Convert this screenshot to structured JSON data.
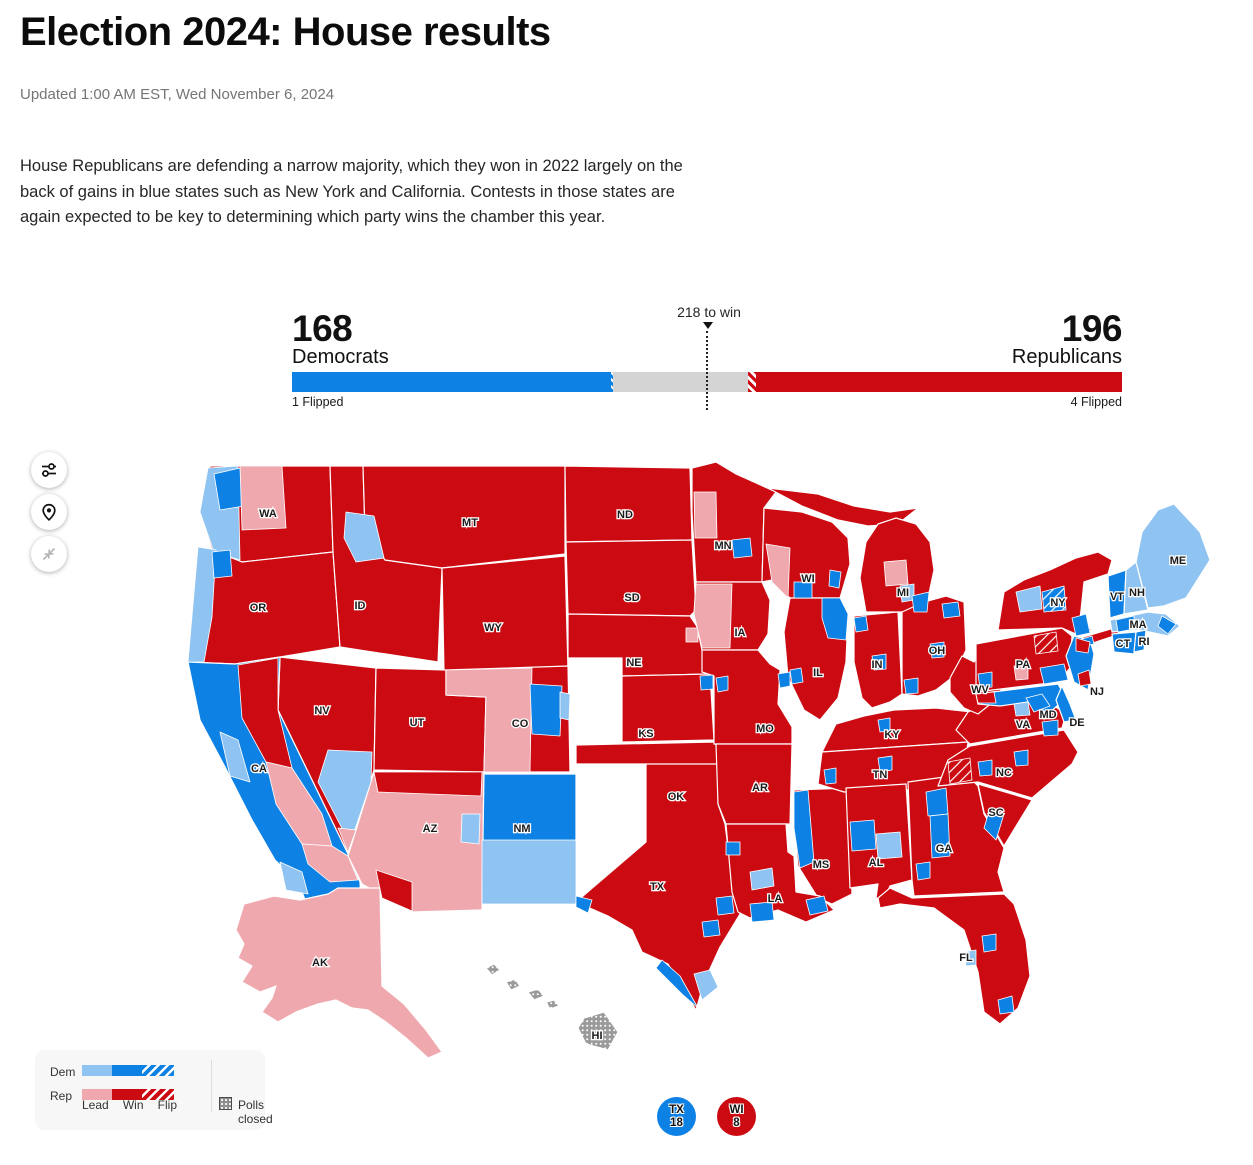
{
  "page": {
    "title": "Election 2024: House results",
    "updated": "Updated 1:00 AM EST, Wed November 6, 2024",
    "paragraph": "House Republicans are defending a narrow majority, which they won in 2022 largely on the back of gains in blue states such as New York and California. Contests in those states are again expected to be key to determining which party wins the chamber this year."
  },
  "balance": {
    "dem_count": "168",
    "dem_label": "Democrats",
    "rep_count": "196",
    "rep_label": "Republicans",
    "marker_label": "218 to win",
    "dem_flipped": "1 Flipped",
    "rep_flipped": "4 Flipped",
    "dem_seats": 168,
    "rep_seats": 196,
    "total_seats": 435,
    "dem_flips": 1,
    "rep_flips": 4,
    "win_threshold": 218
  },
  "palette": {
    "dem_win": "#0e81e4",
    "dem_lead": "#8fc3f2",
    "rep_win": "#cc0a11",
    "rep_lead": "#efa9ae",
    "undecided": "#d4d4d4",
    "polls_closed": "#9a9a9a",
    "text": "#0c0c0c",
    "muted": "#757575"
  },
  "legend": {
    "dem_label": "Dem",
    "rep_label": "Rep",
    "lead_label": "Lead",
    "win_label": "Win",
    "flip_label": "Flip",
    "polls_closed_label": "Polls closed"
  },
  "badges": [
    {
      "state": "TX",
      "district": "18",
      "party": "dem"
    },
    {
      "state": "WI",
      "district": "8",
      "party": "rep"
    }
  ],
  "map": {
    "labels": {
      "WA": "WA",
      "OR": "OR",
      "CA": "CA",
      "NV": "NV",
      "ID": "ID",
      "MT": "MT",
      "WY": "WY",
      "UT": "UT",
      "CO": "CO",
      "AZ": "AZ",
      "NM": "NM",
      "ND": "ND",
      "SD": "SD",
      "NE": "NE",
      "KS": "KS",
      "OK": "OK",
      "TX": "TX",
      "MN": "MN",
      "IA": "IA",
      "MO": "MO",
      "AR": "AR",
      "LA": "LA",
      "WI": "WI",
      "IL": "IL",
      "MI": "MI",
      "IN": "IN",
      "OH": "OH",
      "KY": "KY",
      "TN": "TN",
      "MS": "MS",
      "AL": "AL",
      "GA": "GA",
      "FL": "FL",
      "SC": "SC",
      "NC": "NC",
      "VA": "VA",
      "WV": "WV",
      "PA": "PA",
      "NY": "NY",
      "NJ": "NJ",
      "MD": "MD",
      "DE": "DE",
      "VT": "VT",
      "NH": "NH",
      "ME": "ME",
      "MA": "MA",
      "CT": "CT",
      "RI": "RI",
      "AK": "AK",
      "HI": "HI"
    },
    "fills": {
      "WA": "rep_win",
      "OR": "rep_win",
      "CA": "dem_win",
      "NV": "rep_win",
      "ID": "rep_win",
      "MT": "rep_win",
      "WY": "rep_win",
      "UT": "rep_win",
      "CO": "rep_win",
      "AZ": "rep_lead",
      "NM": "dem_win",
      "ND": "rep_win",
      "SD": "rep_win",
      "NE": "rep_win",
      "KS": "rep_win",
      "OK": "rep_win",
      "TX": "rep_win",
      "MN": "rep_win",
      "IA": "rep_win",
      "MO": "rep_win",
      "AR": "rep_win",
      "LA": "rep_win",
      "WI": "rep_win",
      "IL": "rep_win",
      "MIU": "rep_win",
      "MI": "rep_win",
      "IN": "rep_win",
      "OH": "rep_win",
      "KY": "rep_win",
      "TN": "rep_win",
      "MS": "rep_win",
      "AL": "rep_win",
      "GA": "rep_win",
      "FL": "rep_win",
      "SC": "rep_win",
      "NC": "rep_win",
      "VA": "rep_win",
      "WV": "rep_win",
      "PA": "rep_win",
      "NY": "rep_win",
      "NYLI": "rep_win",
      "NJ": "dem_win",
      "MD": "dem_win",
      "DE": "dem_win",
      "VT": "dem_win",
      "NH": "dem_lead",
      "ME": "dem_lead",
      "MA": "dem_lead",
      "CT": "dem_win",
      "RI": "dem_win",
      "AK": "rep_lead",
      "HI1": "polls_closed",
      "HI2": "polls_closed",
      "HI3": "polls_closed",
      "HI4": "polls_closed",
      "HI5": "polls_closed",
      "wa1": "dem_lead",
      "wa2": "dem_win",
      "wa3": "rep_lead",
      "or1": "dem_lead",
      "or2": "dem_win",
      "ca1": "rep_win",
      "ca2": "rep_lead",
      "ca3": "rep_lead",
      "ca4": "dem_lead",
      "ca5": "dem_lead",
      "nv1": "dem_lead",
      "nv2": "rep_lead",
      "id1": "dem_lead",
      "co1": "rep_lead",
      "co2": "dem_win",
      "co3": "dem_lead",
      "az1": "rep_win",
      "az2": "rep_win",
      "az3": "dem_lead",
      "nm1": "dem_lead",
      "ne1": "rep_lead",
      "ks1": "dem_win",
      "mn1": "dem_win",
      "mn2": "rep_lead",
      "ia1": "rep_lead",
      "wi1": "rep_lead",
      "wi2": "dem_win",
      "wi3": "dem_win",
      "il1": "dem_win",
      "il2": "dem_win",
      "mi1": "rep_lead",
      "mi2": "dem_lead",
      "mi3": "dem_win",
      "in1": "dem_win",
      "in2": "dem_win",
      "oh1": "dem_win",
      "oh2": "dem_win",
      "oh3": "dem_win",
      "ky1": "dem_win",
      "tn1": "dem_win",
      "tn2": "dem_win",
      "ms1": "dem_win",
      "al1": "dem_win",
      "al2": "dem_lead",
      "ga1": "dem_win",
      "ga2": "dem_win",
      "ga3": "dem_win",
      "fl1": "dem_win",
      "fl2": "dem_lead",
      "fl3": "dem_win",
      "sc1": "dem_win",
      "nc1": "dem_win",
      "nc2": "dem_win",
      "nc3": "rep_flip",
      "va1": "dem_win",
      "va2": "dem_win",
      "va3": "dem_lead",
      "pa1": "dem_win",
      "pa2": "dem_win",
      "pa3": "rep_flip",
      "pa4": "rep_lead",
      "ny1": "dem_lead",
      "ny2": "dem_flip",
      "ny3": "dem_win",
      "ny4": "dem_win",
      "nj1": "rep_win",
      "nj2": "rep_win",
      "md1": "rep_win",
      "ma1": "dem_win",
      "ma2": "dem_win",
      "mo1": "dem_win",
      "mo2": "dem_win",
      "la1": "dem_win",
      "la2": "dem_lead",
      "tx1": "dem_win",
      "tx2": "dem_win",
      "tx3": "dem_win",
      "tx4": "dem_win",
      "tx5": "dem_win",
      "tx6": "dem_win",
      "tx7": "dem_lead"
    }
  }
}
